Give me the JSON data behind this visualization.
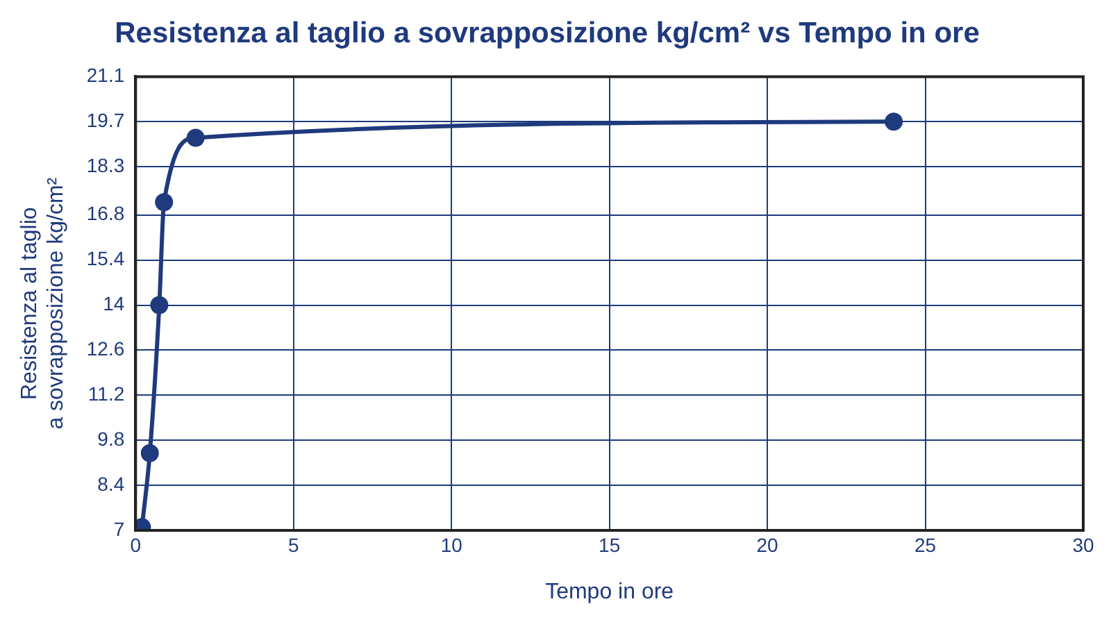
{
  "chart_data": {
    "type": "line",
    "title": "Resistenza al taglio a sovrapposizione kg/cm² vs Tempo in ore",
    "xlabel": "Tempo in ore",
    "ylabel": "Resistenza al taglio a sovrapposizione kg/cm²",
    "x": [
      0.2,
      0.45,
      0.75,
      0.9,
      1.9,
      24
    ],
    "series": [
      {
        "color": "#1f3a7d",
        "values": [
          7.1,
          9.4,
          14,
          17.2,
          19.2,
          19.7
        ]
      }
    ],
    "xlim": [
      0,
      30
    ],
    "xticks": [
      0,
      5,
      10,
      15,
      20,
      25,
      30
    ],
    "ylim": [
      7,
      21.1
    ],
    "yticks": [
      7,
      8.4,
      9.8,
      11.2,
      12.6,
      14,
      15.4,
      16.8,
      18.3,
      19.7,
      21.1
    ],
    "grid": true,
    "legend": false,
    "marker": "circle",
    "line_style": "solid"
  }
}
